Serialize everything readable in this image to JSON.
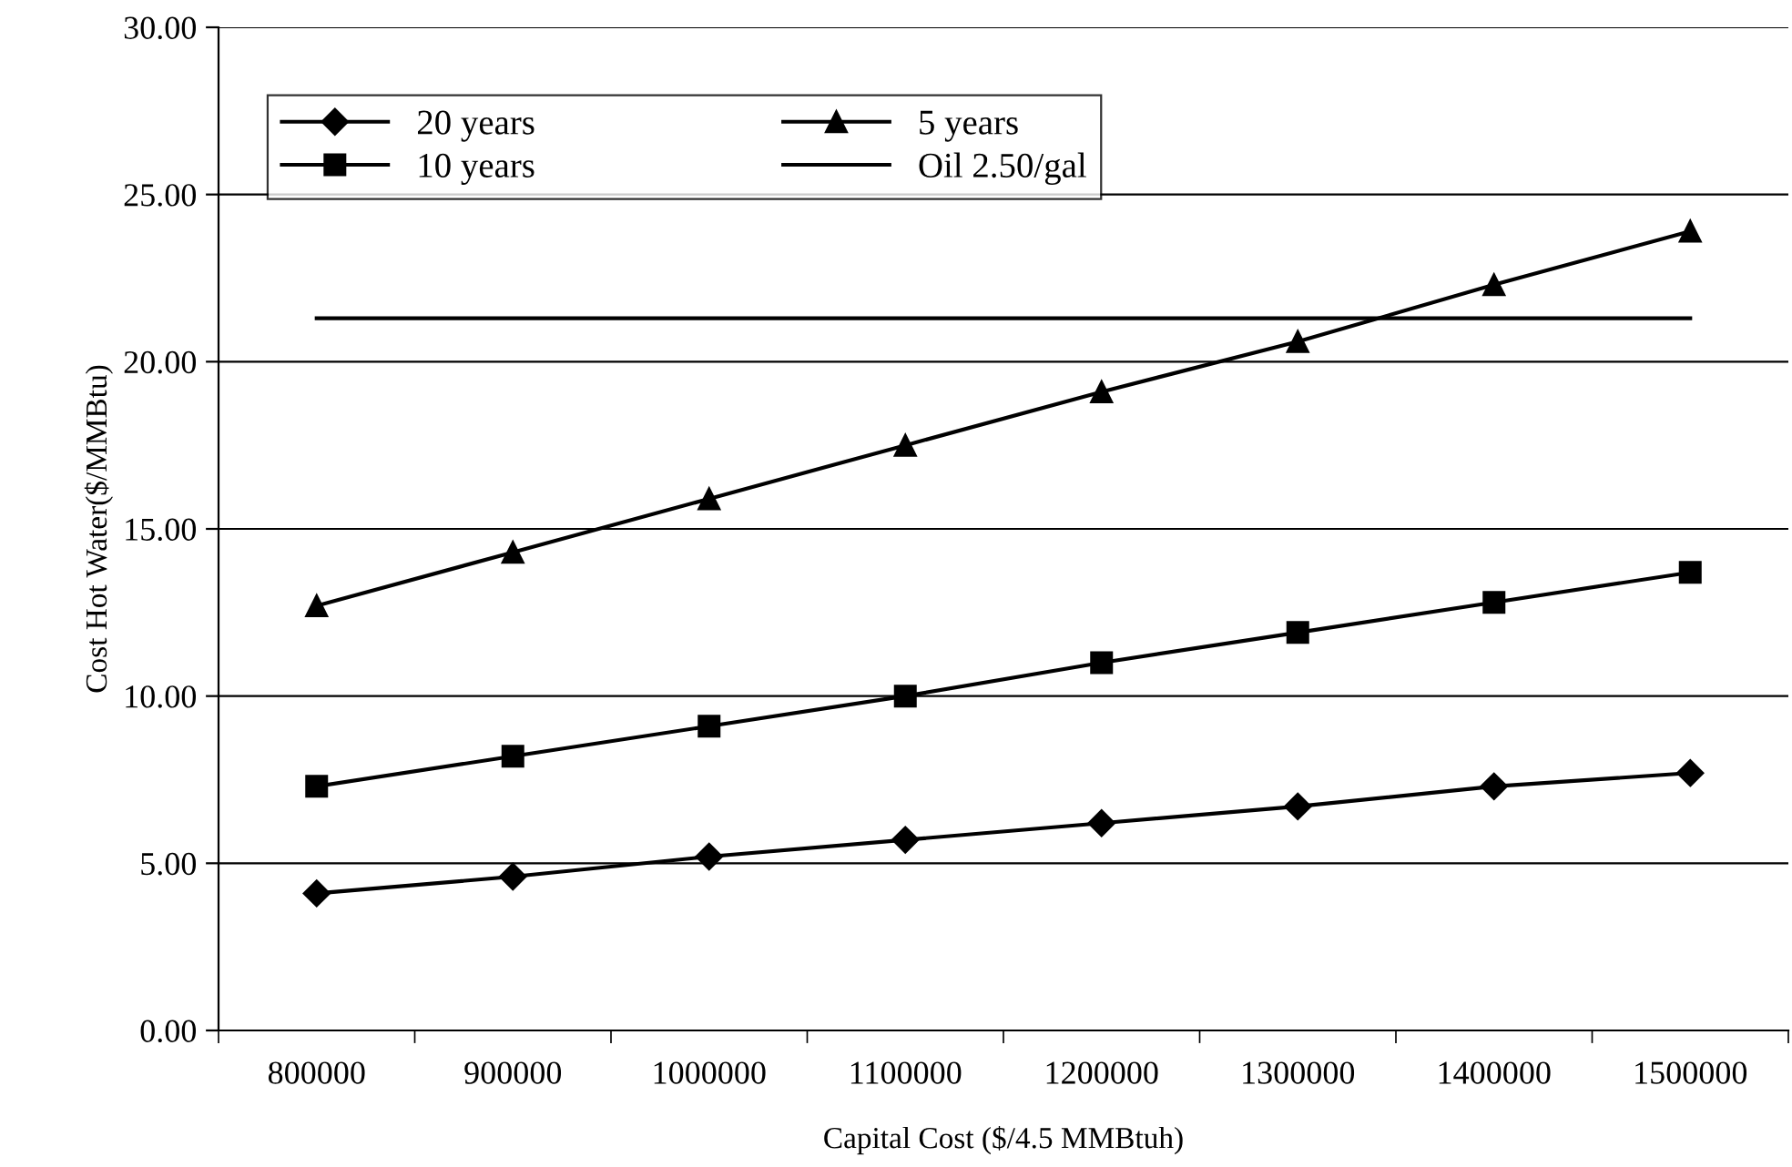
{
  "chart_data": {
    "type": "line",
    "xlabel": "Capital Cost ($/4.5 MMBtuh)",
    "ylabel": "Cost Hot Water($/MMBtu)",
    "categories": [
      "800000",
      "900000",
      "1000000",
      "1100000",
      "1200000",
      "1300000",
      "1400000",
      "1500000"
    ],
    "series": [
      {
        "name": "20 years",
        "color": "#000000",
        "marker": "diamond",
        "values": [
          4.1,
          4.6,
          5.2,
          5.7,
          6.2,
          6.7,
          7.3,
          7.7
        ]
      },
      {
        "name": "10 years",
        "color": "#000000",
        "marker": "square",
        "values": [
          7.3,
          8.2,
          9.1,
          10.0,
          11.0,
          11.9,
          12.8,
          13.7
        ]
      },
      {
        "name": "5 years",
        "color": "#000000",
        "marker": "triangle",
        "values": [
          12.7,
          14.3,
          15.9,
          17.5,
          19.1,
          20.6,
          22.3,
          23.9
        ]
      },
      {
        "name": "Oil 2.50/gal",
        "color": "#000000",
        "marker": "none",
        "values": [
          21.3,
          21.3,
          21.3,
          21.3,
          21.3,
          21.3,
          21.3,
          21.3
        ]
      }
    ],
    "ylim": [
      0,
      30
    ],
    "yticks": [
      {
        "value": 0,
        "label": "0.00"
      },
      {
        "value": 5,
        "label": "5.00"
      },
      {
        "value": 10,
        "label": "10.00"
      },
      {
        "value": 15,
        "label": "15.00"
      },
      {
        "value": 20,
        "label": "20.00"
      },
      {
        "value": 25,
        "label": "25.00"
      },
      {
        "value": 30,
        "label": "30.00"
      }
    ],
    "grid": "y",
    "legend": "top left",
    "line_style": "solid"
  }
}
